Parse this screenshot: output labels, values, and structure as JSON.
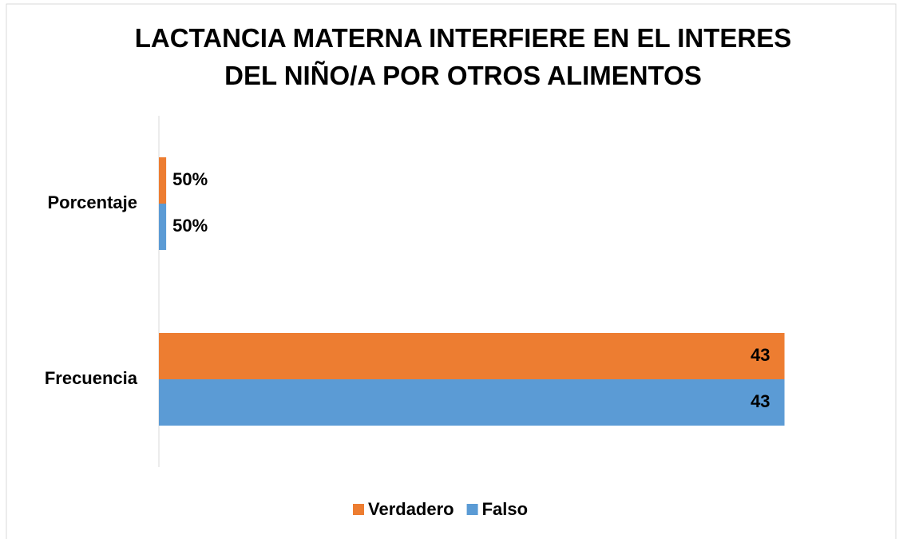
{
  "chart_data": {
    "type": "bar",
    "orientation": "horizontal",
    "title": "LACTANCIA MATERNA INTERFIERE EN EL INTERES DEL NIÑO/A POR OTROS ALIMENTOS",
    "categories": [
      "Frecuencia",
      "Porcentaje"
    ],
    "series": [
      {
        "name": "Verdadero",
        "color": "#ed7d31",
        "values": [
          43,
          0.5
        ],
        "value_labels": [
          "43",
          "50%"
        ]
      },
      {
        "name": "Falso",
        "color": "#5b9bd5",
        "values": [
          43,
          0.5
        ],
        "value_labels": [
          "43",
          "50%"
        ]
      }
    ],
    "xlim": [
      0,
      45
    ],
    "legend": "bottom"
  }
}
